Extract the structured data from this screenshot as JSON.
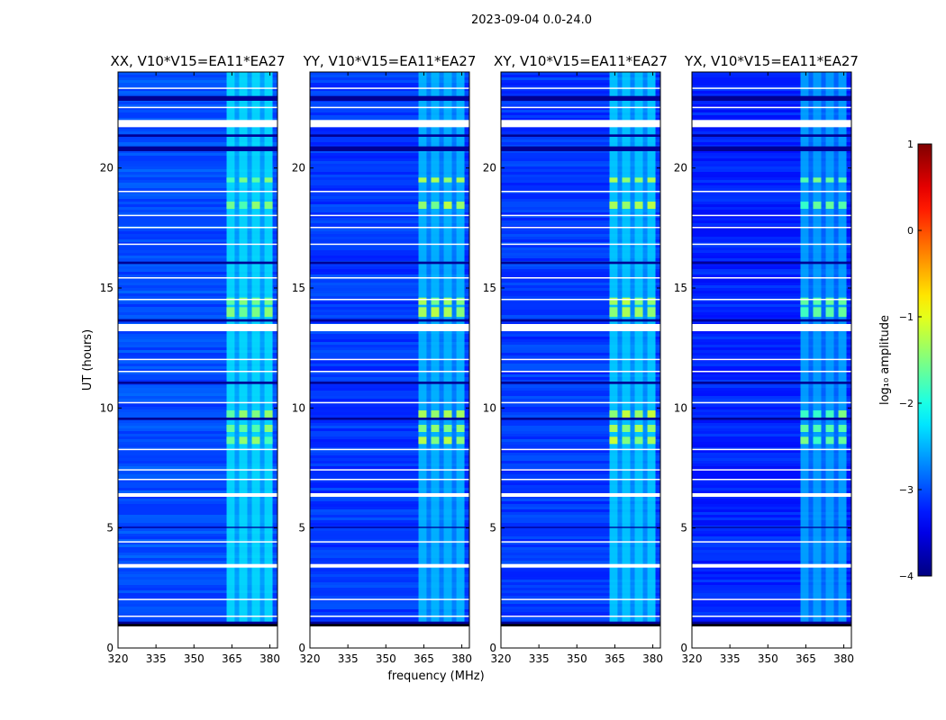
{
  "figure": {
    "suptitle": "2023-09-04 0.0-24.0"
  },
  "chart_data": {
    "type": "heatmap",
    "shared_ylabel": "UT (hours)",
    "shared_xlabel": "frequency (MHz)",
    "xlim": [
      320,
      383
    ],
    "ylim": [
      0,
      24
    ],
    "x_ticks": [
      320,
      335,
      350,
      365,
      380
    ],
    "y_ticks": [
      0,
      5,
      10,
      15,
      20
    ],
    "panels": [
      {
        "id": "xx",
        "title": "XX, V10*V15=EA11*EA27",
        "base_level": -3.0,
        "rfi_level": -2.4,
        "hot_level": -1.6,
        "show_yticks": true
      },
      {
        "id": "yy",
        "title": "YY, V10*V15=EA11*EA27",
        "base_level": -3.1,
        "rfi_level": -2.6,
        "hot_level": -1.4,
        "show_yticks": true
      },
      {
        "id": "xy",
        "title": "XY, V10*V15=EA11*EA27",
        "base_level": -3.1,
        "rfi_level": -2.5,
        "hot_level": -1.3,
        "show_yticks": true
      },
      {
        "id": "yx",
        "title": "YX, V10*V15=EA11*EA27",
        "base_level": -3.2,
        "rfi_level": -2.7,
        "hot_level": -1.7,
        "show_yticks": true
      }
    ],
    "rfi_band_mhz": [
      363,
      381
    ],
    "rfi_channels_mhz": [
      365,
      370,
      375,
      380
    ],
    "flagged_hours": [
      [
        0.0,
        0.9
      ],
      [
        13.2,
        13.5
      ],
      [
        21.7,
        22.0
      ],
      [
        6.3,
        6.45
      ],
      [
        3.35,
        3.5
      ],
      [
        7.0,
        7.05
      ],
      [
        7.4,
        7.45
      ],
      [
        8.25,
        8.3
      ],
      [
        10.2,
        10.25
      ],
      [
        11.5,
        11.55
      ],
      [
        12.0,
        12.05
      ],
      [
        14.5,
        14.55
      ],
      [
        15.4,
        15.45
      ],
      [
        16.8,
        16.85
      ],
      [
        17.5,
        17.55
      ],
      [
        18.0,
        18.05
      ],
      [
        19.0,
        19.05
      ],
      [
        22.5,
        22.55
      ],
      [
        23.3,
        23.35
      ],
      [
        2.0,
        2.05
      ],
      [
        1.3,
        1.35
      ],
      [
        4.4,
        4.45
      ]
    ],
    "dark_hours": [
      [
        0.9,
        1.1
      ],
      [
        13.6,
        13.7
      ],
      [
        9.5,
        9.6
      ],
      [
        20.7,
        20.9
      ],
      [
        22.8,
        23.0
      ],
      [
        21.3,
        21.4
      ],
      [
        16.0,
        16.1
      ],
      [
        11.0,
        11.1
      ],
      [
        5.0,
        5.05
      ]
    ],
    "hot_hours": [
      [
        8.5,
        8.8
      ],
      [
        9.0,
        9.3
      ],
      [
        9.6,
        9.9
      ],
      [
        13.8,
        14.2
      ],
      [
        14.3,
        14.6
      ],
      [
        18.3,
        18.6
      ],
      [
        19.4,
        19.6
      ]
    ],
    "colorbar": {
      "label": "log₁₀ amplitude",
      "min": -4,
      "max": 1,
      "ticks": [
        1,
        0,
        -1,
        -2,
        -3,
        -4
      ],
      "tick_labels": [
        "1",
        "0",
        "−1",
        "−2",
        "−3",
        "−4"
      ],
      "colormap": "jet"
    }
  }
}
